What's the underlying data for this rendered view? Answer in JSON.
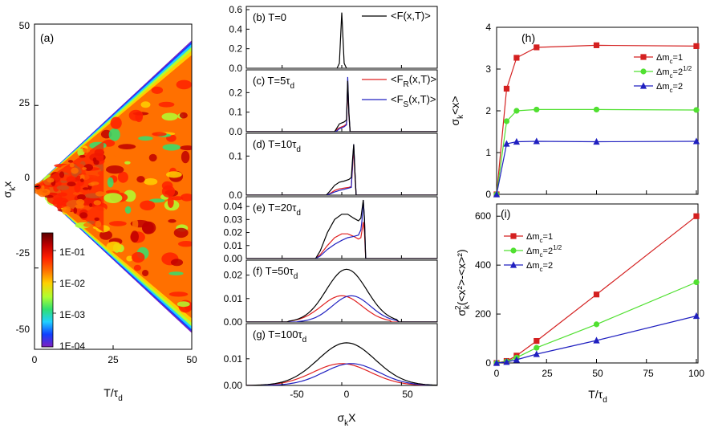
{
  "chart_data": [
    {
      "id": "a",
      "type": "heatmap",
      "panel_label": "(a)",
      "xlabel_main": "T/τ",
      "xlabel_sub": "d",
      "ylabel_sub": "k",
      "ylabel_main": "x",
      "ylabel_prefix": "σ",
      "xlim": [
        0,
        50
      ],
      "ylim": [
        -50,
        50
      ],
      "xticks": [
        "0",
        "25",
        "50"
      ],
      "yticks": [
        "50",
        "25",
        "0",
        "-25",
        "-50"
      ],
      "colorbar_labels": [
        "1E-01",
        "1E-02",
        "1E-03",
        "1E-04"
      ],
      "colors": [
        "#5a0000",
        "#c00000",
        "#ff2000",
        "#ff7000",
        "#ffd000",
        "#b0ff30",
        "#30e070",
        "#20d0ff",
        "#1040ff",
        "#5010c0",
        "#8020c0"
      ],
      "description_values": {
        "front_speed": 0.9
      }
    },
    {
      "id": "b-g",
      "type": "line",
      "xlabel": "σ",
      "xlabel_sub": "k",
      "xlabel_tail": "X",
      "xlim": [
        -80,
        80
      ],
      "xticks": [
        "-50",
        "0",
        "50"
      ],
      "series_colors": {
        "F": "#000000",
        "FR": "#e02020",
        "FS": "#2020c0"
      },
      "panels": [
        {
          "label": "(b) T=0",
          "label_main": "(b) T=0",
          "label_sub": "",
          "ylim": [
            0,
            0.6
          ],
          "yticks": [
            "0.6",
            "0.4",
            "0.2",
            "0.0"
          ],
          "legend": [
            {
              "main": "<F(x,T)>",
              "sub": ""
            }
          ],
          "series": {
            "F": {
              "x": [
                -4,
                -2,
                0,
                2,
                4
              ],
              "y": [
                0,
                0.05,
                0.57,
                0.05,
                0
              ]
            }
          }
        },
        {
          "label": "(c) T=5τd",
          "label_main": "(c) T=5τ",
          "label_sub": "d",
          "ylim": [
            0,
            0.3
          ],
          "yticks": [
            "0.2",
            "0.1",
            "0.0"
          ],
          "legend": [
            {
              "main": "<F",
              "sub": "R",
              "tail": "(x,T)>"
            },
            {
              "main": "<F",
              "sub": "S",
              "tail": "(x,T)>"
            }
          ],
          "series": {
            "F": {
              "x": [
                -80,
                -6,
                -4,
                -2,
                0,
                2,
                4,
                5,
                6,
                7,
                80
              ],
              "y": [
                0,
                0,
                0.02,
                0.04,
                0.045,
                0.05,
                0.06,
                0.26,
                0.1,
                0,
                0
              ]
            },
            "FR": {
              "x": [
                -80,
                -6,
                -4,
                -2,
                0,
                2,
                4,
                5,
                6,
                7,
                80
              ],
              "y": [
                0,
                0,
                0.012,
                0.02,
                0.025,
                0.03,
                0.04,
                0.24,
                0.08,
                0,
                0
              ]
            },
            "FS": {
              "x": [
                -80,
                -6,
                -4,
                -2,
                0,
                2,
                4,
                5,
                6,
                7,
                80
              ],
              "y": [
                0,
                0,
                0.005,
                0.015,
                0.02,
                0.025,
                0.035,
                0.28,
                0.09,
                0,
                0
              ]
            }
          }
        },
        {
          "label": "(d) T=10τd",
          "label_main": "(d) T=10τ",
          "label_sub": "d",
          "ylim": [
            0,
            0.15
          ],
          "yticks": [
            "0.1",
            "0.0"
          ],
          "legend": [],
          "series": {
            "F": {
              "x": [
                -80,
                -13,
                -10,
                -6,
                -2,
                2,
                6,
                8,
                9,
                10,
                11,
                12,
                80
              ],
              "y": [
                0,
                0,
                0.01,
                0.025,
                0.033,
                0.036,
                0.04,
                0.045,
                0.09,
                0.13,
                0.06,
                0,
                0
              ]
            },
            "FR": {
              "x": [
                -80,
                -13,
                -10,
                -6,
                -2,
                2,
                6,
                8,
                9,
                10,
                11,
                12,
                80
              ],
              "y": [
                0,
                0,
                0.004,
                0.012,
                0.016,
                0.018,
                0.02,
                0.022,
                0.07,
                0.12,
                0.05,
                0,
                0
              ]
            },
            "FS": {
              "x": [
                -80,
                -13,
                -10,
                -6,
                -2,
                2,
                6,
                8,
                9,
                10,
                11,
                12,
                80
              ],
              "y": [
                0,
                0,
                0.003,
                0.008,
                0.012,
                0.015,
                0.018,
                0.02,
                0.08,
                0.13,
                0.06,
                0,
                0
              ]
            }
          }
        },
        {
          "label": "(e) T=20τd",
          "label_main": "(e) T=20τ",
          "label_sub": "d",
          "ylim": [
            0,
            0.045
          ],
          "yticks": [
            "0.04",
            "0.03",
            "0.02",
            "0.01",
            "0.00"
          ],
          "legend": [],
          "series": {
            "F": {
              "x": [
                -80,
                -22,
                -18,
                -12,
                -6,
                0,
                5,
                10,
                14,
                16,
                17,
                18,
                19,
                20,
                80
              ],
              "y": [
                0,
                0,
                0.006,
                0.02,
                0.03,
                0.034,
                0.034,
                0.031,
                0.029,
                0.031,
                0.038,
                0.045,
                0.03,
                0,
                0
              ]
            },
            "FR": {
              "x": [
                -80,
                -22,
                -18,
                -12,
                -6,
                0,
                5,
                10,
                14,
                16,
                17,
                18,
                19,
                20,
                80
              ],
              "y": [
                0,
                0,
                0.003,
                0.01,
                0.016,
                0.019,
                0.019,
                0.017,
                0.015,
                0.016,
                0.022,
                0.028,
                0.02,
                0,
                0
              ]
            },
            "FS": {
              "x": [
                -80,
                -22,
                -18,
                -12,
                -6,
                0,
                5,
                10,
                14,
                16,
                17,
                18,
                19,
                20,
                80
              ],
              "y": [
                0,
                0,
                0.002,
                0.007,
                0.011,
                0.014,
                0.016,
                0.017,
                0.018,
                0.022,
                0.03,
                0.045,
                0.03,
                0,
                0
              ]
            }
          }
        },
        {
          "label": "(f) T=50τd",
          "label_main": "(f) T=50τ",
          "label_sub": "d",
          "ylim": [
            0,
            0.025
          ],
          "yticks": [
            "0.02",
            "0.01",
            "0.00"
          ],
          "legend": [],
          "gauss": {
            "F": {
              "a": 0.0225,
              "mu": 4,
              "sd": 17,
              "lo": -44,
              "hi": 47
            },
            "FR": {
              "a": 0.0112,
              "mu": 0,
              "sd": 17,
              "lo": -44,
              "hi": 40
            },
            "FS": {
              "a": 0.0112,
              "mu": 8,
              "sd": 16,
              "lo": -36,
              "hi": 47
            }
          }
        },
        {
          "label": "(g) T=100τd",
          "label_main": "(g) T=100τ",
          "label_sub": "d",
          "ylim": [
            0,
            0.022
          ],
          "yticks": [
            "0.01",
            "0.00"
          ],
          "legend": [],
          "gauss": {
            "F": {
              "a": 0.016,
              "mu": 4,
              "sd": 24,
              "lo": -80,
              "hi": 80
            },
            "FR": {
              "a": 0.0082,
              "mu": 0,
              "sd": 24,
              "lo": -80,
              "hi": 80
            },
            "FS": {
              "a": 0.0082,
              "mu": 8,
              "sd": 23,
              "lo": -80,
              "hi": 80
            }
          }
        }
      ]
    },
    {
      "id": "h",
      "type": "line",
      "panel_label": "(h)",
      "ylabel_main": "<x>",
      "ylabel_sub": "k",
      "ylabel_prefix": "σ",
      "xlim": [
        0,
        100
      ],
      "ylim": [
        0,
        4
      ],
      "yticks": [
        "4",
        "3",
        "2",
        "1",
        "0"
      ],
      "x": [
        0,
        5,
        10,
        20,
        50,
        100
      ],
      "series": [
        {
          "name": "Δm_c=1",
          "legend_main": "Δm",
          "legend_sub": "c",
          "legend_tail": "=1",
          "legend_sup": "",
          "color": "#d42020",
          "marker": "square",
          "values": [
            0,
            2.53,
            3.27,
            3.52,
            3.57,
            3.55
          ]
        },
        {
          "name": "Δm_c=2^1/2",
          "legend_main": "Δm",
          "legend_sub": "c",
          "legend_tail": "=2",
          "legend_sup": "1/2",
          "color": "#50e030",
          "marker": "circle",
          "values": [
            0,
            1.75,
            2.0,
            2.03,
            2.03,
            2.02
          ]
        },
        {
          "name": "Δm_c=2",
          "legend_main": "Δm",
          "legend_sub": "c",
          "legend_tail": "=2",
          "legend_sup": "",
          "color": "#2020c0",
          "marker": "triangle",
          "values": [
            0,
            1.21,
            1.26,
            1.27,
            1.26,
            1.27
          ]
        }
      ]
    },
    {
      "id": "i",
      "type": "line",
      "panel_label": "(i)",
      "ylabel_main": "(<x²>-<x>²)",
      "ylabel_prefix": "σ",
      "ylabel_sub": "k",
      "ylabel_sup": "2",
      "xlabel_main": "T/τ",
      "xlabel_sub": "d",
      "xlim": [
        0,
        100
      ],
      "ylim": [
        0,
        650
      ],
      "xticks": [
        "0",
        "25",
        "50",
        "75",
        "100"
      ],
      "yticks": [
        "600",
        "400",
        "200",
        "0"
      ],
      "x": [
        0,
        5,
        10,
        20,
        50,
        100
      ],
      "series": [
        {
          "name": "Δm_c=1",
          "legend_main": "Δm",
          "legend_sub": "c",
          "legend_tail": "=1",
          "legend_sup": "",
          "color": "#d42020",
          "marker": "square",
          "values": [
            0,
            8,
            30,
            90,
            280,
            600
          ]
        },
        {
          "name": "Δm_c=2^1/2",
          "legend_main": "Δm",
          "legend_sub": "c",
          "legend_tail": "=2",
          "legend_sup": "1/2",
          "color": "#50e030",
          "marker": "circle",
          "values": [
            0,
            6,
            22,
            62,
            158,
            330
          ]
        },
        {
          "name": "Δm_c=2",
          "legend_main": "Δm",
          "legend_sub": "c",
          "legend_tail": "=2",
          "legend_sup": "",
          "color": "#2020c0",
          "marker": "triangle",
          "values": [
            0,
            4,
            13,
            36,
            92,
            192
          ]
        }
      ]
    }
  ]
}
